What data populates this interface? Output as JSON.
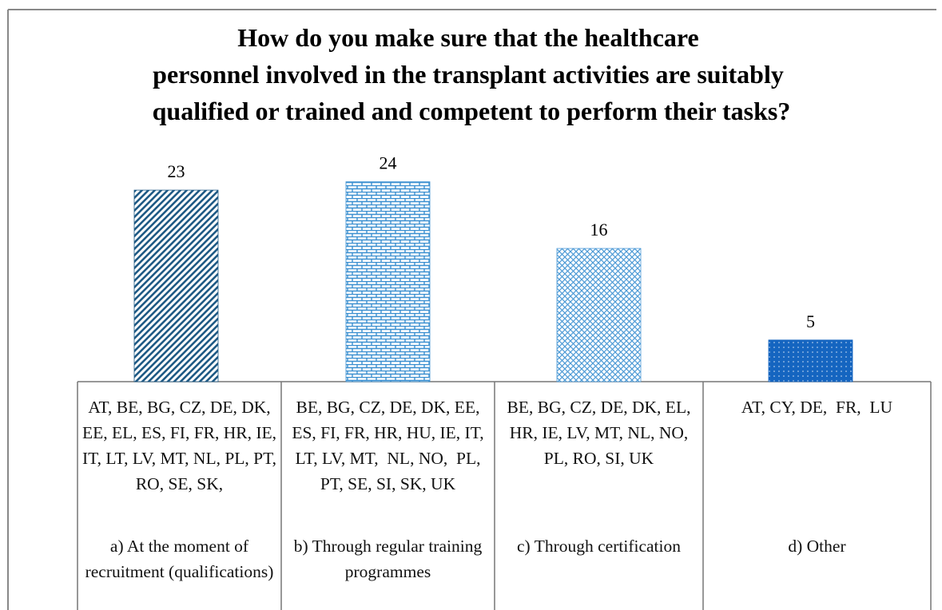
{
  "chart_data": {
    "type": "bar",
    "title": "How do you make sure that the healthcare personnel involved in the transplant activities are suitably qualified or trained and competent to perform their tasks?",
    "categories": [
      "a) At the moment of recruitment (qualifications)",
      "b) Through regular training programmes",
      "c) Through certification",
      "d) Other"
    ],
    "values": [
      23,
      24,
      16,
      5
    ],
    "colors": [
      "#1f5a85",
      "#3a8fd0",
      "#4d9ad6",
      "#1565c0"
    ],
    "patterns": [
      "diagonal",
      "brick",
      "crosshatch",
      "dots"
    ],
    "country_lists": [
      "AT, BE, BG, CZ, DE, DK, EE, EL, ES, FI, FR, HR, IE, IT, LT, LV, MT, NL, PL, PT,  RO, SE, SK,",
      "BE, BG, CZ, DE, DK, EE, ES, FI, FR, HR, HU, IE, IT, LT, LV, MT,  NL, NO,  PL,  PT, SE, SI, SK, UK",
      "BE, BG, CZ, DE, DK, EL, HR, IE, LV, MT, NL, NO, PL, RO, SI, UK",
      "AT, CY, DE,  FR,  LU"
    ]
  }
}
